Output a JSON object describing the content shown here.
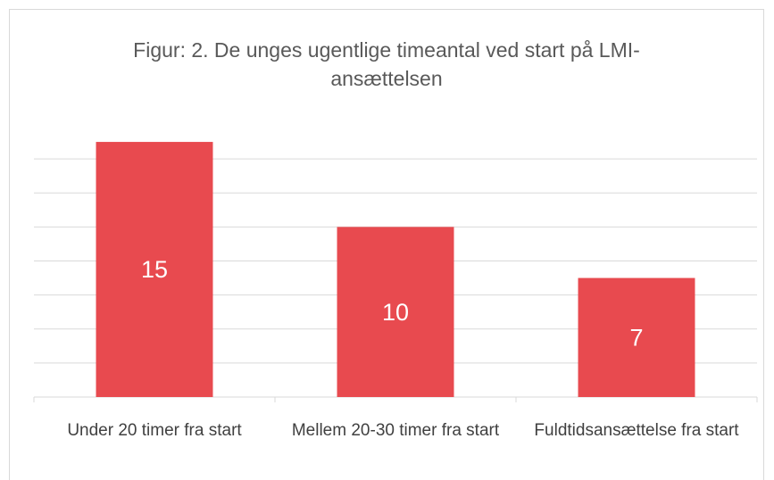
{
  "chart_data": {
    "type": "bar",
    "title": "Figur: 2. De unges ugentlige timeantal ved start på LMI-ansættelsen",
    "categories": [
      "Under 20 timer fra start",
      "Mellem 20-30 timer fra start",
      "Fuldtidsansættelse fra start"
    ],
    "values": [
      15,
      10,
      7
    ],
    "color": "#e84a4f",
    "ylim": [
      0,
      16
    ],
    "yticks": [
      0,
      2,
      4,
      6,
      8,
      10,
      12,
      14
    ],
    "grid": true
  }
}
